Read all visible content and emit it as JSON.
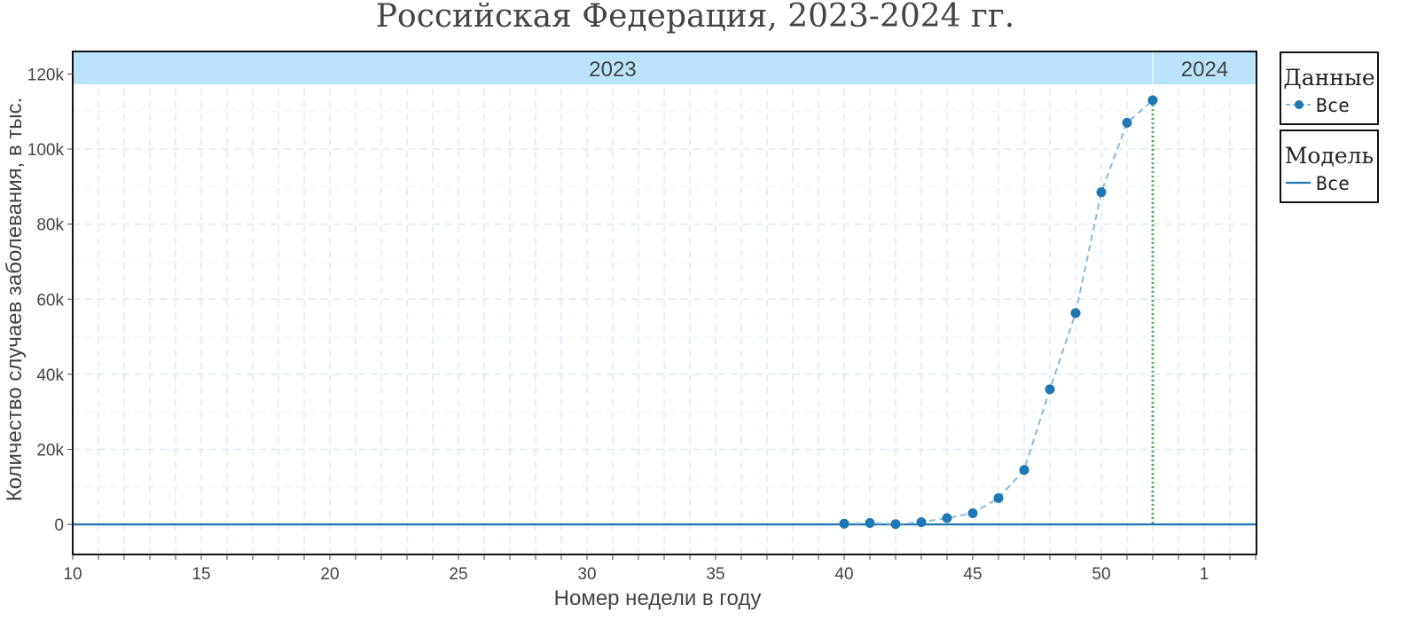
{
  "chart_data": {
    "type": "line",
    "title": "Российская Федерация, 2023-2024 гг.",
    "xlabel": "Номер недели в году",
    "ylabel": "Количество случаев заболевания, в тыс.",
    "x_ticks": [
      "10",
      "15",
      "20",
      "25",
      "30",
      "35",
      "40",
      "45",
      "50",
      "1"
    ],
    "y_ticks": [
      "0",
      "20k",
      "40k",
      "60k",
      "80k",
      "100k",
      "120k"
    ],
    "ylim": [
      -8000,
      126000
    ],
    "y_tick_values": [
      0,
      20000,
      40000,
      60000,
      80000,
      100000,
      120000
    ],
    "grid": true,
    "year_strip": [
      "2023",
      "2024"
    ],
    "data_series": {
      "name": "Все",
      "x_weeks": [
        40,
        41,
        42,
        43,
        44,
        45,
        46,
        47,
        48,
        49,
        50,
        51,
        52
      ],
      "values": [
        200,
        400,
        100,
        600,
        1700,
        3000,
        7000,
        14500,
        36000,
        56300,
        88500,
        107000,
        113000
      ]
    },
    "model_series": {
      "name": "Все",
      "value": 0
    },
    "forecast_marker_week": 52,
    "legend": [
      {
        "title": "Данные",
        "item": "Все",
        "style": "marker-dashed-line"
      },
      {
        "title": "Модель",
        "item": "Все",
        "style": "solid-line"
      }
    ],
    "legend_placement": "right",
    "colors": {
      "data_marker": "#1f77b4",
      "data_line": "#85b8df",
      "model_line": "#1f77b4",
      "forecast_line": "#4caf50",
      "strip_fill": "#b9e2fb",
      "grid": "#d6e4f5"
    }
  }
}
